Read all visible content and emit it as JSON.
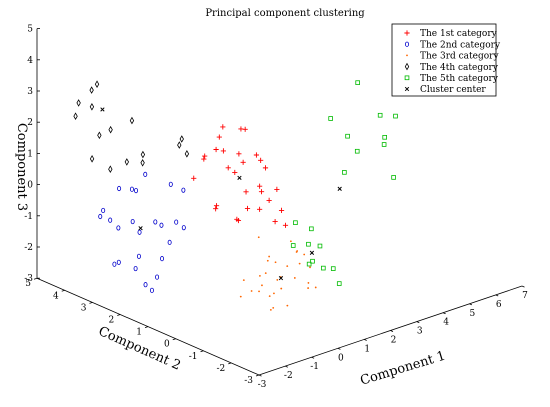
{
  "chart_data": {
    "type": "scatter",
    "title": "Principal component clustering",
    "axes": {
      "x": {
        "label": "Component 1",
        "ticks": [
          "-3",
          "-2",
          "-1",
          "0",
          "1",
          "2",
          "3",
          "4",
          "5",
          "6",
          "7"
        ]
      },
      "y": {
        "label": "Component 2",
        "ticks": [
          "-3",
          "-2",
          "-1",
          "0",
          "1",
          "2",
          "3",
          "4",
          "5"
        ]
      },
      "z": {
        "label": "Component 3",
        "ticks": [
          "-3",
          "-2",
          "-1",
          "0",
          "1",
          "2",
          "3",
          "4",
          "5"
        ]
      }
    },
    "legend_position": "top-right",
    "series": [
      {
        "name": "The 1st category",
        "color": "#ff0000",
        "marker": "plus",
        "points": [
          [
            -0.2,
            1.2,
            1.8
          ],
          [
            0.5,
            1.6,
            1.4
          ],
          [
            0.8,
            1.1,
            2.2
          ],
          [
            1.3,
            1.8,
            1.0
          ],
          [
            0.2,
            0.5,
            0.6
          ],
          [
            1.0,
            0.7,
            0.3
          ],
          [
            1.6,
            1.3,
            0.9
          ],
          [
            -0.5,
            0.9,
            0.2
          ],
          [
            0.9,
            2.0,
            1.9
          ],
          [
            1.8,
            2.2,
            1.5
          ],
          [
            0.1,
            1.5,
            -0.3
          ],
          [
            1.2,
            0.4,
            -0.6
          ],
          [
            0.6,
            2.4,
            0.8
          ],
          [
            1.5,
            0.9,
            -0.2
          ],
          [
            -0.3,
            0.3,
            -0.1
          ],
          [
            2.1,
            1.6,
            0.4
          ],
          [
            0.3,
            1.0,
            1.0
          ],
          [
            1.1,
            1.3,
            -0.5
          ],
          [
            0.7,
            0.6,
            1.6
          ],
          [
            2.3,
            2.0,
            -0.4
          ],
          [
            -0.1,
            2.1,
            0.5
          ],
          [
            1.9,
            1.0,
            0.0
          ],
          [
            0.4,
            0.2,
            0.1
          ],
          [
            1.4,
            2.6,
            1.2
          ],
          [
            2.5,
            1.4,
            -1.0
          ],
          [
            0.0,
            1.8,
            1.3
          ],
          [
            1.7,
            0.5,
            -0.9
          ],
          [
            1.0,
            1.9,
            0.6
          ],
          [
            2.2,
            2.5,
            0.2
          ],
          [
            0.8,
            1.4,
            -0.8
          ]
        ]
      },
      {
        "name": "The 2nd category",
        "color": "#0000cc",
        "marker": "circle",
        "points": [
          [
            -2.0,
            2.5,
            -0.5
          ],
          [
            -1.5,
            3.0,
            0.2
          ],
          [
            -2.5,
            1.8,
            -1.2
          ],
          [
            -1.2,
            2.2,
            -1.8
          ],
          [
            -1.8,
            3.5,
            -0.9
          ],
          [
            -2.2,
            2.8,
            0.5
          ],
          [
            -0.8,
            2.6,
            -1.0
          ],
          [
            -1.4,
            1.5,
            -0.3
          ],
          [
            -2.8,
            2.4,
            -1.6
          ],
          [
            -1.0,
            3.2,
            -1.4
          ],
          [
            -2.3,
            1.4,
            0.0
          ],
          [
            -1.6,
            2.0,
            -2.2
          ],
          [
            -0.6,
            2.0,
            0.3
          ],
          [
            -2.6,
            3.1,
            -0.4
          ],
          [
            -1.9,
            1.9,
            -2.5
          ],
          [
            -1.1,
            2.9,
            0.6
          ],
          [
            -2.1,
            2.3,
            -1.9
          ],
          [
            -0.9,
            1.7,
            -0.7
          ],
          [
            -1.7,
            3.3,
            -1.1
          ],
          [
            -2.4,
            2.0,
            0.8
          ],
          [
            -1.3,
            2.7,
            -2.8
          ],
          [
            -2.7,
            2.9,
            -0.1
          ],
          [
            -0.7,
            2.4,
            -1.5
          ],
          [
            -1.5,
            1.6,
            0.9
          ],
          [
            -2.0,
            3.0,
            -2.0
          ]
        ]
      },
      {
        "name": "The 3rd category",
        "color": "#ff6600",
        "marker": "dot",
        "points": [
          [
            0.5,
            0.0,
            -1.5
          ],
          [
            1.0,
            -0.5,
            -2.0
          ],
          [
            0.2,
            0.3,
            -2.5
          ],
          [
            1.5,
            -0.2,
            -1.8
          ],
          [
            0.8,
            0.6,
            -2.8
          ],
          [
            0.0,
            -0.4,
            -1.6
          ],
          [
            1.2,
            0.2,
            -2.3
          ],
          [
            0.4,
            -0.8,
            -2.6
          ],
          [
            1.8,
            0.4,
            -1.4
          ],
          [
            0.6,
            -0.1,
            -3.0
          ],
          [
            1.4,
            -0.6,
            -2.4
          ],
          [
            -0.2,
            0.2,
            -2.0
          ],
          [
            1.0,
            0.8,
            -1.2
          ],
          [
            0.3,
            -0.3,
            -2.9
          ],
          [
            2.0,
            -0.1,
            -2.1
          ],
          [
            0.9,
            0.1,
            -1.7
          ],
          [
            1.6,
            0.7,
            -2.7
          ],
          [
            0.1,
            -0.6,
            -2.2
          ],
          [
            1.3,
            -0.3,
            -1.3
          ],
          [
            0.7,
            0.4,
            -2.5
          ],
          [
            2.2,
            0.3,
            -1.9
          ],
          [
            0.5,
            -0.7,
            -1.4
          ],
          [
            1.1,
            0.5,
            -3.0
          ],
          [
            1.9,
            -0.4,
            -2.6
          ],
          [
            0.2,
            0.0,
            -1.9
          ],
          [
            1.5,
            0.9,
            -2.0
          ],
          [
            0.8,
            -0.2,
            -2.4
          ],
          [
            1.7,
            0.1,
            -1.6
          ],
          [
            0.0,
            0.5,
            -2.7
          ],
          [
            1.2,
            -0.8,
            -2.1
          ]
        ]
      },
      {
        "name": "The 4th category",
        "color": "#000000",
        "marker": "diamond",
        "points": [
          [
            -3.0,
            3.5,
            3.2
          ],
          [
            -2.6,
            3.4,
            3.0
          ],
          [
            -2.3,
            3.5,
            3.6
          ],
          [
            -2.8,
            3.8,
            2.6
          ],
          [
            -2.1,
            3.2,
            2.2
          ],
          [
            -1.8,
            2.9,
            1.2
          ],
          [
            -2.4,
            3.6,
            3.4
          ],
          [
            -2.0,
            3.7,
            1.8
          ],
          [
            -1.5,
            3.0,
            2.4
          ],
          [
            -1.2,
            2.9,
            1.0
          ],
          [
            -2.7,
            3.3,
            1.4
          ],
          [
            -1.9,
            3.4,
            0.8
          ],
          [
            0.8,
            3.2,
            0.6
          ],
          [
            0.3,
            3.0,
            1.1
          ],
          [
            0.5,
            3.1,
            1.2
          ],
          [
            -1.4,
            2.7,
            1.4
          ]
        ]
      },
      {
        "name": "The 5th category",
        "color": "#00bb00",
        "marker": "square",
        "points": [
          [
            5.5,
            1.5,
            2.2
          ],
          [
            5.0,
            2.0,
            1.0
          ],
          [
            6.0,
            1.0,
            0.5
          ],
          [
            5.3,
            0.5,
            1.6
          ],
          [
            5.8,
            1.8,
            -0.2
          ],
          [
            4.8,
            1.2,
            0.8
          ],
          [
            6.2,
            0.8,
            1.2
          ],
          [
            5.6,
            0.3,
            -0.4
          ],
          [
            5.1,
            1.6,
            -0.6
          ],
          [
            6.4,
            1.4,
            0.0
          ],
          [
            2.8,
            0.3,
            -1.8
          ],
          [
            2.4,
            -0.2,
            -2.2
          ],
          [
            3.0,
            0.8,
            -1.5
          ],
          [
            2.6,
            0.5,
            -2.4
          ],
          [
            2.2,
            0.0,
            -2.0
          ],
          [
            3.2,
            0.2,
            -2.6
          ],
          [
            2.5,
            0.9,
            -1.2
          ],
          [
            2.9,
            -0.3,
            -2.8
          ],
          [
            2.1,
            0.6,
            -1.7
          ],
          [
            3.1,
            1.0,
            -2.1
          ]
        ]
      },
      {
        "name": "Cluster center",
        "color": "#000000",
        "marker": "x",
        "points": [
          [
            -2.2,
            3.4,
            2.8
          ],
          [
            0.9,
            1.4,
            0.5
          ],
          [
            -1.7,
            2.5,
            -0.8
          ],
          [
            1.0,
            0.0,
            -2.2
          ],
          [
            4.5,
            1.2,
            -0.8
          ],
          [
            2.6,
            0.4,
            -2.0
          ]
        ]
      }
    ]
  }
}
